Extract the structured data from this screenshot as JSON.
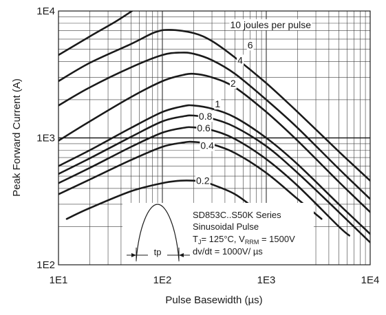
{
  "chart_data": {
    "type": "line",
    "xscale": "log",
    "yscale": "log",
    "xlim": [
      10,
      10000
    ],
    "ylim": [
      100,
      10000
    ],
    "xlabel": "Pulse Basewidth (µs)",
    "ylabel": "Peak Forward Current (A)",
    "x_ticks": [
      "1E1",
      "1E2",
      "1E3",
      "1E4"
    ],
    "y_ticks": [
      "1E2",
      "1E3",
      "1E4"
    ],
    "grid": true,
    "series": [
      {
        "name": "10 joules per pulse",
        "x": [
          10,
          20,
          35,
          51
        ],
        "y": [
          4500,
          6300,
          8200,
          10000
        ]
      },
      {
        "name": "6",
        "x": [
          10,
          20,
          50,
          85,
          120,
          200,
          300,
          500,
          1000,
          2000,
          5000,
          10000
        ],
        "y": [
          2800,
          3900,
          5500,
          6800,
          7100,
          6700,
          5800,
          4300,
          2700,
          1600,
          780,
          460
        ]
      },
      {
        "name": "4",
        "x": [
          10,
          20,
          50,
          100,
          150,
          200,
          300,
          500,
          1000,
          2000,
          5000,
          10000
        ],
        "y": [
          1800,
          2500,
          3600,
          4500,
          4700,
          4600,
          4100,
          3200,
          2000,
          1200,
          570,
          330
        ]
      },
      {
        "name": "2",
        "x": [
          10,
          20,
          50,
          100,
          150,
          200,
          300,
          500,
          1000,
          2000,
          5000,
          10000
        ],
        "y": [
          950,
          1350,
          2100,
          2800,
          3100,
          3200,
          3000,
          2500,
          1600,
          950,
          450,
          260
        ]
      },
      {
        "name": "1",
        "x": [
          10,
          20,
          50,
          100,
          160,
          200,
          300,
          500,
          1000,
          2000,
          5000,
          10000
        ],
        "y": [
          600,
          800,
          1200,
          1600,
          1780,
          1800,
          1700,
          1450,
          1000,
          620,
          300,
          175
        ]
      },
      {
        "name": "0.8",
        "x": [
          10,
          20,
          50,
          100,
          160,
          200,
          300,
          500,
          1000,
          2000,
          5000,
          10000
        ],
        "y": [
          520,
          690,
          1020,
          1350,
          1480,
          1500,
          1420,
          1220,
          860,
          530,
          260,
          150
        ]
      },
      {
        "name": "0.6",
        "x": [
          10,
          20,
          50,
          100,
          160,
          200,
          300,
          500,
          1000,
          2000,
          5000,
          6300
        ],
        "y": [
          440,
          580,
          850,
          1100,
          1200,
          1210,
          1150,
          980,
          680,
          420,
          200,
          170
        ]
      },
      {
        "name": "0.4",
        "x": [
          10,
          20,
          50,
          100,
          160,
          200,
          300,
          500,
          1000,
          2000,
          3400
        ],
        "y": [
          360,
          470,
          670,
          850,
          920,
          930,
          890,
          760,
          530,
          330,
          230
        ]
      },
      {
        "name": "0.2",
        "x": [
          12,
          20,
          50,
          100,
          150,
          200,
          250,
          300,
          500,
          800,
          1100
        ],
        "y": [
          230,
          280,
          380,
          440,
          460,
          460,
          450,
          430,
          360,
          270,
          210
        ]
      }
    ],
    "annotations": [
      "SD853C..S50K Series",
      "Sinusoidal Pulse",
      "TJ = 125°C, VRRM = 1500V",
      "dv/dt = 1000V/µs",
      "tp"
    ]
  },
  "inset": {
    "series_name": "SD853C..S50K Series",
    "pulse_type": "Sinusoidal Pulse",
    "conditions_pre": "T",
    "conditions_tj_sub": "J",
    "conditions_mid": "= 125°C, V",
    "conditions_v_sub": "RRM",
    "conditions_post": " = 1500V",
    "dvdt": "dv/dt = 1000V/ µs",
    "pulse_label": "tp"
  }
}
